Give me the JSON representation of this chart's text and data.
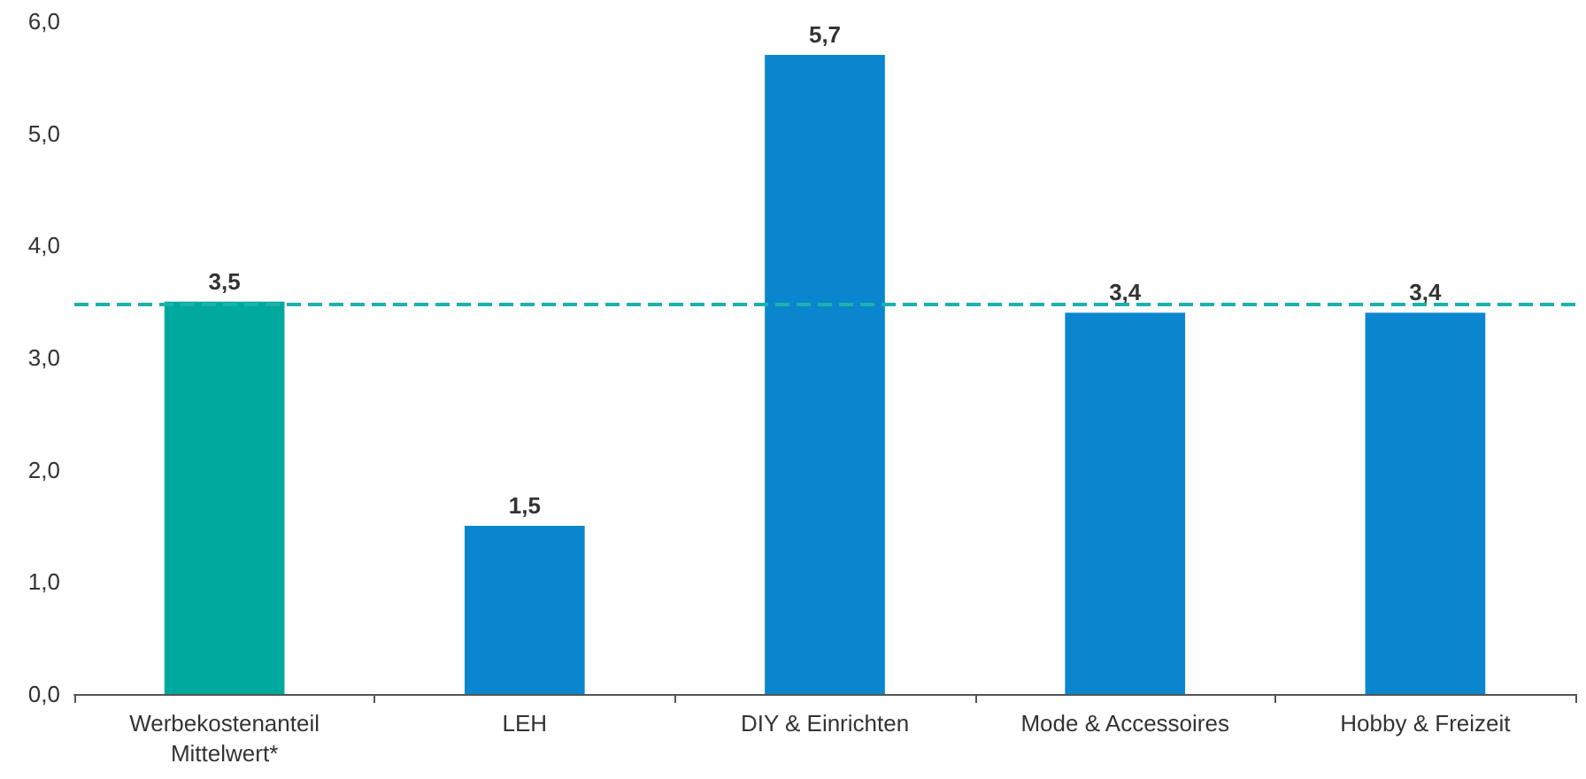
{
  "chart_data": {
    "type": "bar",
    "categories": [
      "Werbekostenanteil\nMittelwert*",
      "LEH",
      "DIY & Einrichten",
      "Mode & Accessoires",
      "Hobby & Freizeit"
    ],
    "values": [
      3.5,
      1.5,
      5.7,
      3.4,
      3.4
    ],
    "colors": [
      "#00a99d",
      "#0a86cf",
      "#0a86cf",
      "#0a86cf",
      "#0a86cf"
    ],
    "value_labels": [
      "3,5",
      "1,5",
      "5,7",
      "3,4",
      "3,4"
    ],
    "ylim": [
      0,
      6
    ],
    "yticks": [
      {
        "value": 0,
        "label": "0,0"
      },
      {
        "value": 1,
        "label": "1,0"
      },
      {
        "value": 2,
        "label": "2,0"
      },
      {
        "value": 3,
        "label": "3,0"
      },
      {
        "value": 4,
        "label": "4,0"
      },
      {
        "value": 5,
        "label": "5,0"
      },
      {
        "value": 6,
        "label": "6,0"
      }
    ],
    "ref_lines": [
      {
        "axis": "y",
        "value": 3.47,
        "label": null,
        "color": "#1bb1ad",
        "line_style": "dashed"
      }
    ],
    "grid": false
  }
}
